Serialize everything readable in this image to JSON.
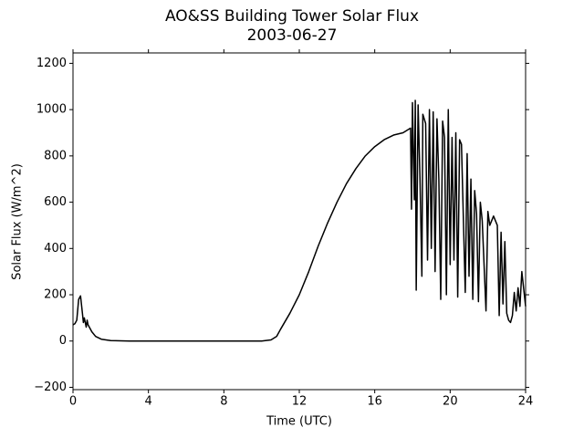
{
  "chart_data": {
    "type": "line",
    "title": "AO&SS Building Tower Solar Flux",
    "subtitle": "2003-06-27",
    "x_label": "Time (UTC)",
    "y_label": "Solar Flux (W/m^2)",
    "color": "#000000",
    "xlim": [
      0,
      24
    ],
    "xticks": [
      0,
      4,
      8,
      12,
      16,
      20,
      24
    ],
    "ylim": [
      -210,
      1245
    ],
    "yticks": [
      {
        "value": -200,
        "label": "−200"
      },
      0,
      200,
      400,
      600,
      800,
      1000,
      1200
    ],
    "x": [
      0,
      0.1,
      0.2,
      0.3,
      0.4,
      0.5,
      0.55,
      0.6,
      0.7,
      0.75,
      0.8,
      1.0,
      1.2,
      1.5,
      2,
      3,
      4,
      5,
      6,
      7,
      8,
      9,
      10,
      10.5,
      10.8,
      11,
      11.5,
      12,
      12.5,
      13,
      13.5,
      14,
      14.5,
      15,
      15.5,
      16,
      16.5,
      17,
      17.5,
      17.9,
      17.95,
      18.0,
      18.1,
      18.15,
      18.2,
      18.3,
      18.4,
      18.5,
      18.55,
      18.7,
      18.8,
      18.9,
      19.0,
      19.1,
      19.2,
      19.3,
      19.4,
      19.5,
      19.6,
      19.7,
      19.8,
      19.9,
      20.0,
      20.1,
      20.2,
      20.3,
      20.4,
      20.5,
      20.6,
      20.8,
      20.9,
      21.0,
      21.1,
      21.2,
      21.3,
      21.4,
      21.5,
      21.6,
      21.7,
      21.9,
      22.0,
      22.1,
      22.3,
      22.5,
      22.6,
      22.7,
      22.8,
      22.9,
      23.0,
      23.1,
      23.2,
      23.3,
      23.4,
      23.5,
      23.6,
      23.7,
      23.8,
      24
    ],
    "values": [
      70,
      75,
      90,
      180,
      195,
      120,
      80,
      100,
      60,
      90,
      70,
      40,
      20,
      8,
      2,
      0,
      0,
      0,
      0,
      0,
      0,
      0,
      0,
      5,
      20,
      50,
      120,
      200,
      300,
      410,
      510,
      600,
      680,
      745,
      800,
      840,
      870,
      890,
      900,
      920,
      570,
      1030,
      610,
      1040,
      220,
      1020,
      700,
      280,
      980,
      940,
      350,
      1000,
      400,
      990,
      300,
      960,
      700,
      180,
      950,
      880,
      200,
      1000,
      330,
      880,
      350,
      900,
      190,
      870,
      850,
      210,
      810,
      280,
      700,
      180,
      650,
      550,
      170,
      600,
      520,
      130,
      560,
      500,
      540,
      500,
      110,
      470,
      160,
      430,
      120,
      90,
      80,
      110,
      210,
      130,
      230,
      150,
      300,
      150
    ]
  }
}
